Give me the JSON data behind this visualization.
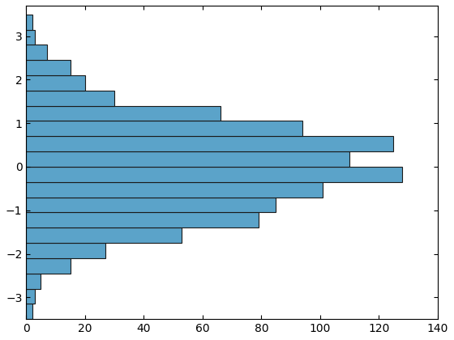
{
  "bar_color": "#5ba3c9",
  "edge_color": "#1a1a1a",
  "linewidth": 0.8,
  "xlim": [
    0,
    140
  ],
  "ylim": [
    -3.5,
    3.7
  ],
  "figsize": [
    5.6,
    4.2
  ],
  "dpi": 100,
  "bin_edges": [
    -3.5,
    -3.15,
    -2.8,
    -2.45,
    -2.1,
    -1.75,
    -1.4,
    -1.05,
    -0.7,
    -0.35,
    0.0,
    0.35,
    0.7,
    1.05,
    1.4,
    1.75,
    2.1,
    2.45,
    2.8,
    3.15,
    3.5
  ],
  "counts": [
    2,
    3,
    5,
    15,
    27,
    53,
    79,
    85,
    101,
    128,
    110,
    125,
    94,
    66,
    30,
    20,
    15,
    7,
    3,
    2
  ]
}
